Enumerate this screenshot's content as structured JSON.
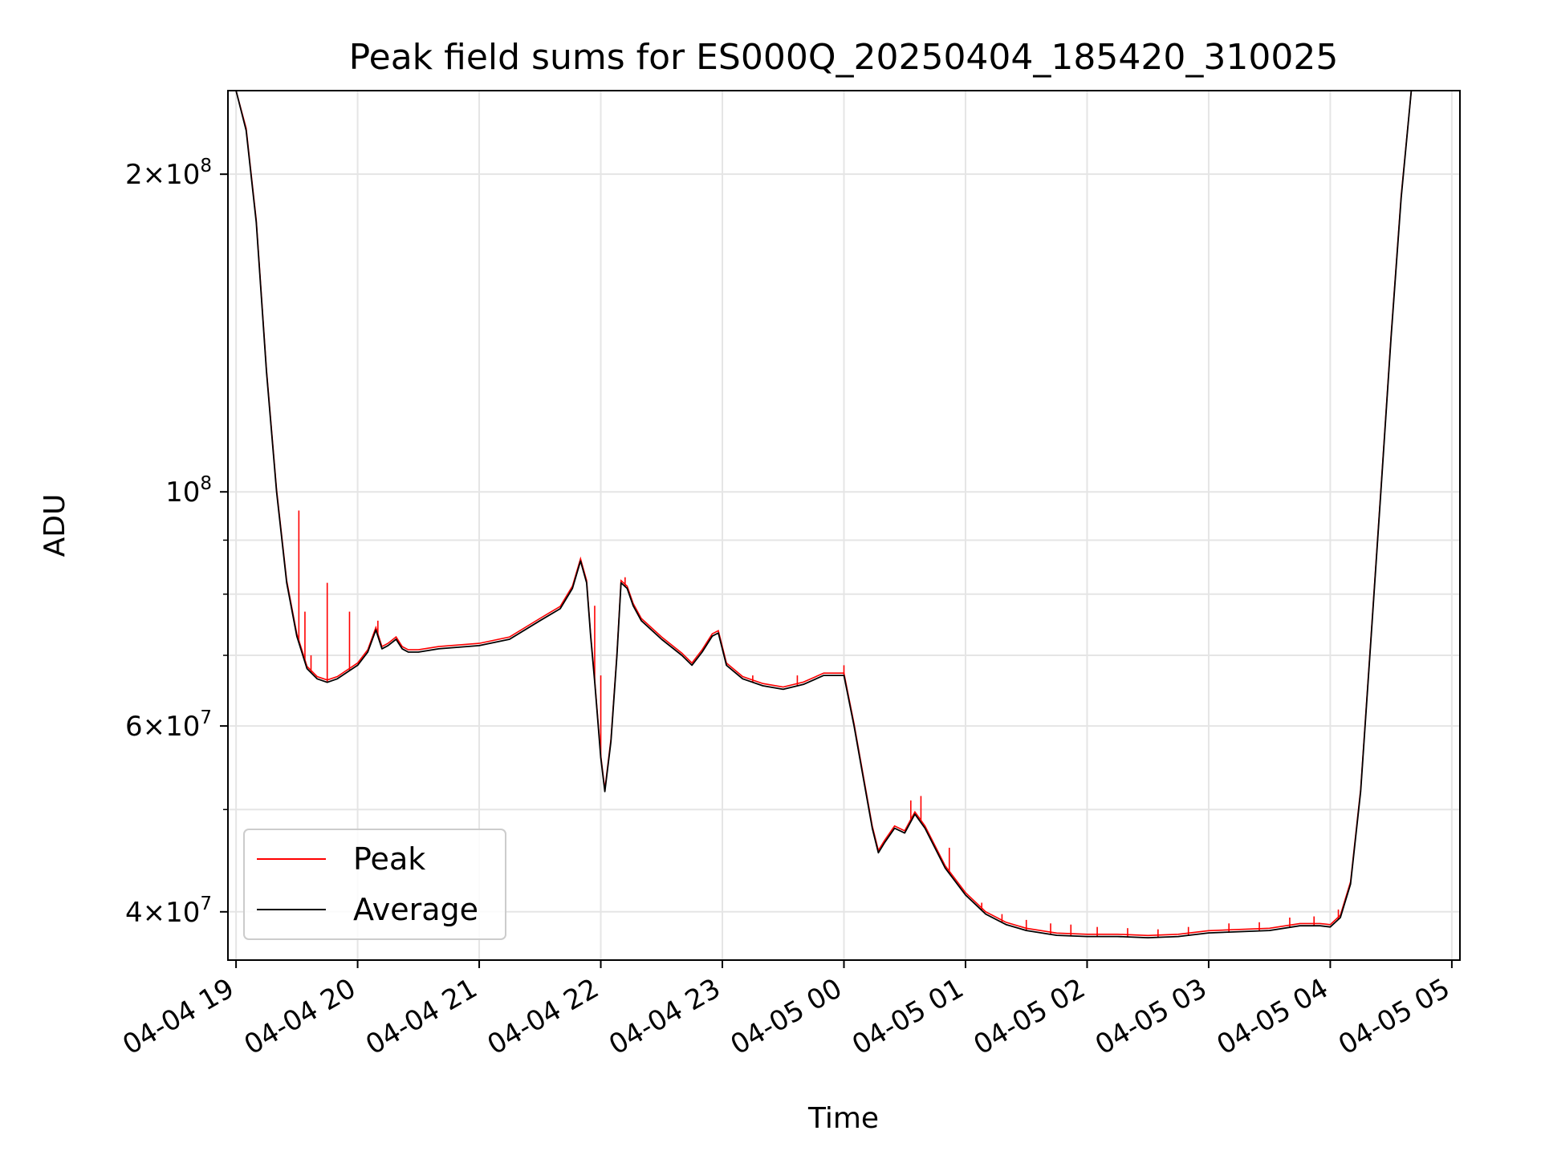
{
  "colors": {
    "peak": "#ff0000",
    "average": "#000000",
    "grid": "#e5e5e5"
  },
  "chart_data": {
    "type": "line",
    "title": "Peak field sums for ES000Q_20250404_185420_310025",
    "xlabel": "Time",
    "ylabel": "ADU",
    "yscale": "log",
    "ylim": [
      36000000,
      240000000
    ],
    "xlim": [
      "2025-04-04 18:56",
      "2025-04-05 05:04"
    ],
    "grid": true,
    "legend_position": "lower-left",
    "x_ticks": [
      "04-04 19",
      "04-04 20",
      "04-04 21",
      "04-04 22",
      "04-04 23",
      "04-05 00",
      "04-05 01",
      "04-05 02",
      "04-05 03",
      "04-05 04",
      "04-05 05"
    ],
    "y_tick_labels": [
      {
        "value": 200000000,
        "mant": "2",
        "exp": "8"
      },
      {
        "value": 100000000,
        "mant": "",
        "exp": "8"
      },
      {
        "value": 60000000,
        "mant": "6",
        "exp": "7"
      },
      {
        "value": 40000000,
        "mant": "4",
        "exp": "7"
      }
    ],
    "series": [
      {
        "name": "Average",
        "color": "#000000",
        "points": [
          [
            "2025-04-04 19:00",
            240000000
          ],
          [
            "2025-04-04 19:05",
            220000000
          ],
          [
            "2025-04-04 19:10",
            180000000
          ],
          [
            "2025-04-04 19:15",
            130000000
          ],
          [
            "2025-04-04 19:20",
            100000000
          ],
          [
            "2025-04-04 19:25",
            82000000
          ],
          [
            "2025-04-04 19:30",
            73000000
          ],
          [
            "2025-04-04 19:35",
            68000000
          ],
          [
            "2025-04-04 19:40",
            66500000
          ],
          [
            "2025-04-04 19:45",
            66000000
          ],
          [
            "2025-04-04 19:50",
            66500000
          ],
          [
            "2025-04-04 19:55",
            67500000
          ],
          [
            "2025-04-04 20:00",
            68500000
          ],
          [
            "2025-04-04 20:05",
            70500000
          ],
          [
            "2025-04-04 20:09",
            74000000
          ],
          [
            "2025-04-04 20:12",
            71000000
          ],
          [
            "2025-04-04 20:15",
            71500000
          ],
          [
            "2025-04-04 20:19",
            72500000
          ],
          [
            "2025-04-04 20:22",
            71000000
          ],
          [
            "2025-04-04 20:25",
            70500000
          ],
          [
            "2025-04-04 20:30",
            70500000
          ],
          [
            "2025-04-04 20:40",
            71000000
          ],
          [
            "2025-04-04 21:00",
            71500000
          ],
          [
            "2025-04-04 21:15",
            72500000
          ],
          [
            "2025-04-04 21:30",
            75500000
          ],
          [
            "2025-04-04 21:40",
            77500000
          ],
          [
            "2025-04-04 21:46",
            81000000
          ],
          [
            "2025-04-04 21:50",
            86000000
          ],
          [
            "2025-04-04 21:53",
            82000000
          ],
          [
            "2025-04-04 21:55",
            73000000
          ],
          [
            "2025-04-04 21:57",
            66000000
          ],
          [
            "2025-04-04 22:00",
            56000000
          ],
          [
            "2025-04-04 22:02",
            52000000
          ],
          [
            "2025-04-04 22:05",
            58000000
          ],
          [
            "2025-04-04 22:08",
            70000000
          ],
          [
            "2025-04-04 22:10",
            82000000
          ],
          [
            "2025-04-04 22:13",
            81000000
          ],
          [
            "2025-04-04 22:16",
            78000000
          ],
          [
            "2025-04-04 22:20",
            75500000
          ],
          [
            "2025-04-04 22:30",
            72500000
          ],
          [
            "2025-04-04 22:40",
            70000000
          ],
          [
            "2025-04-04 22:45",
            68500000
          ],
          [
            "2025-04-04 22:50",
            70500000
          ],
          [
            "2025-04-04 22:55",
            73000000
          ],
          [
            "2025-04-04 22:58",
            73500000
          ],
          [
            "2025-04-04 23:02",
            68500000
          ],
          [
            "2025-04-04 23:10",
            66500000
          ],
          [
            "2025-04-04 23:20",
            65500000
          ],
          [
            "2025-04-04 23:30",
            65000000
          ],
          [
            "2025-04-04 23:40",
            65700000
          ],
          [
            "2025-04-04 23:50",
            67000000
          ],
          [
            "2025-04-05 00:00",
            67000000
          ],
          [
            "2025-04-05 00:05",
            60000000
          ],
          [
            "2025-04-05 00:10",
            53000000
          ],
          [
            "2025-04-05 00:14",
            48000000
          ],
          [
            "2025-04-05 00:17",
            45500000
          ],
          [
            "2025-04-05 00:20",
            46500000
          ],
          [
            "2025-04-05 00:25",
            48000000
          ],
          [
            "2025-04-05 00:30",
            47500000
          ],
          [
            "2025-04-05 00:35",
            49500000
          ],
          [
            "2025-04-05 00:40",
            48000000
          ],
          [
            "2025-04-05 00:50",
            44000000
          ],
          [
            "2025-04-05 01:00",
            41500000
          ],
          [
            "2025-04-05 01:10",
            39800000
          ],
          [
            "2025-04-05 01:20",
            38900000
          ],
          [
            "2025-04-05 01:30",
            38400000
          ],
          [
            "2025-04-05 01:45",
            38000000
          ],
          [
            "2025-04-05 02:00",
            37900000
          ],
          [
            "2025-04-05 02:15",
            37900000
          ],
          [
            "2025-04-05 02:30",
            37800000
          ],
          [
            "2025-04-05 02:45",
            37900000
          ],
          [
            "2025-04-05 03:00",
            38200000
          ],
          [
            "2025-04-05 03:15",
            38300000
          ],
          [
            "2025-04-05 03:30",
            38400000
          ],
          [
            "2025-04-05 03:45",
            38800000
          ],
          [
            "2025-04-05 03:55",
            38800000
          ],
          [
            "2025-04-05 04:00",
            38700000
          ],
          [
            "2025-04-05 04:05",
            39500000
          ],
          [
            "2025-04-05 04:10",
            42500000
          ],
          [
            "2025-04-05 04:15",
            52000000
          ],
          [
            "2025-04-05 04:20",
            72000000
          ],
          [
            "2025-04-05 04:25",
            100000000
          ],
          [
            "2025-04-05 04:30",
            140000000
          ],
          [
            "2025-04-05 04:35",
            190000000
          ],
          [
            "2025-04-05 04:40",
            240000000
          ]
        ]
      },
      {
        "name": "Peak",
        "color": "#ff0000",
        "spikes": [
          [
            "2025-04-04 19:31",
            96000000
          ],
          [
            "2025-04-04 19:34",
            77000000
          ],
          [
            "2025-04-04 19:37",
            70000000
          ],
          [
            "2025-04-04 19:45",
            82000000
          ],
          [
            "2025-04-04 19:56",
            77000000
          ],
          [
            "2025-04-04 20:10",
            75500000
          ],
          [
            "2025-04-04 21:28",
            75000000
          ],
          [
            "2025-04-04 21:57",
            78000000
          ],
          [
            "2025-04-04 22:00",
            67000000
          ],
          [
            "2025-04-04 22:12",
            83000000
          ],
          [
            "2025-04-04 23:15",
            67000000
          ],
          [
            "2025-04-04 23:37",
            67000000
          ],
          [
            "2025-04-05 00:00",
            68500000
          ],
          [
            "2025-04-05 00:33",
            51000000
          ],
          [
            "2025-04-05 00:38",
            51500000
          ],
          [
            "2025-04-05 00:52",
            46000000
          ],
          [
            "2025-04-05 01:08",
            40800000
          ],
          [
            "2025-04-05 01:18",
            39800000
          ],
          [
            "2025-04-05 01:30",
            39300000
          ],
          [
            "2025-04-05 01:42",
            39000000
          ],
          [
            "2025-04-05 01:52",
            38900000
          ],
          [
            "2025-04-05 02:05",
            38700000
          ],
          [
            "2025-04-05 02:20",
            38600000
          ],
          [
            "2025-04-05 02:35",
            38500000
          ],
          [
            "2025-04-05 02:50",
            38700000
          ],
          [
            "2025-04-05 03:10",
            39000000
          ],
          [
            "2025-04-05 03:25",
            39100000
          ],
          [
            "2025-04-05 03:40",
            39500000
          ],
          [
            "2025-04-05 03:52",
            39600000
          ],
          [
            "2025-04-05 04:04",
            40200000
          ]
        ]
      }
    ]
  },
  "legend": {
    "items": [
      {
        "label": "Peak",
        "color": "#ff0000"
      },
      {
        "label": "Average",
        "color": "#000000"
      }
    ]
  }
}
